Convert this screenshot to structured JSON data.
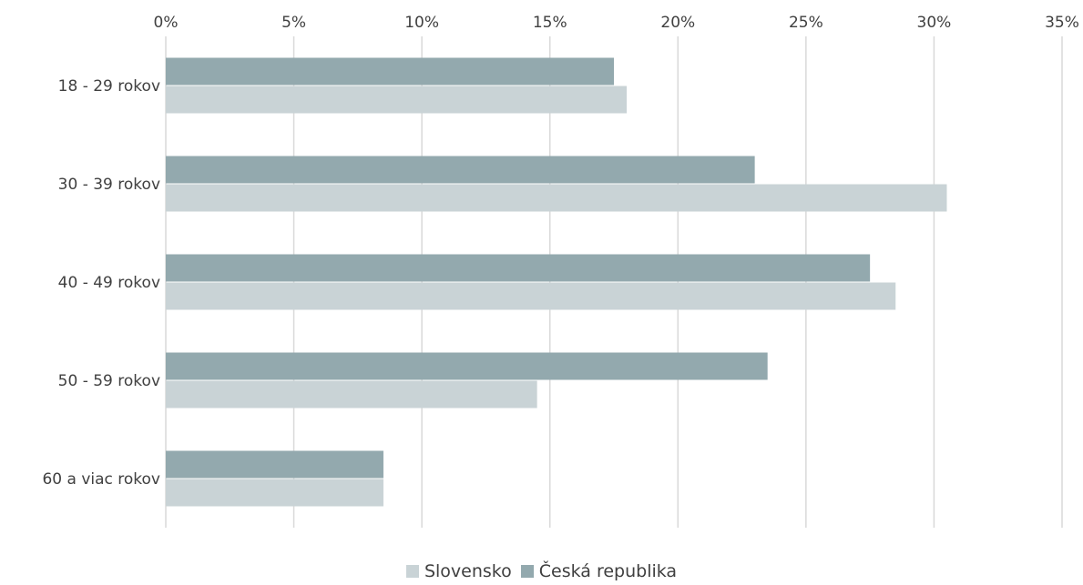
{
  "chart_data": {
    "type": "bar",
    "orientation": "horizontal",
    "categories": [
      "18 - 29 rokov",
      "30 - 39 rokov",
      "40 - 49 rokov",
      "50 - 59 rokov",
      "60 a viac rokov"
    ],
    "series": [
      {
        "name": "Česká republika",
        "color": "#93a9ae",
        "values": [
          17.5,
          23,
          27.5,
          23.5,
          8.5
        ]
      },
      {
        "name": "Slovensko",
        "color": "#c9d3d6",
        "values": [
          18,
          30.5,
          28.5,
          14.5,
          8.5
        ]
      }
    ],
    "xlim": [
      0,
      35
    ],
    "xticks": [
      0,
      5,
      10,
      15,
      20,
      25,
      30,
      35
    ],
    "xtick_labels": [
      "0%",
      "5%",
      "10%",
      "15%",
      "20%",
      "25%",
      "30%",
      "35%"
    ],
    "x_axis_position": "top",
    "grid": true,
    "legend_position": "bottom",
    "legend_order": [
      "Slovensko",
      "Česká republika"
    ]
  }
}
